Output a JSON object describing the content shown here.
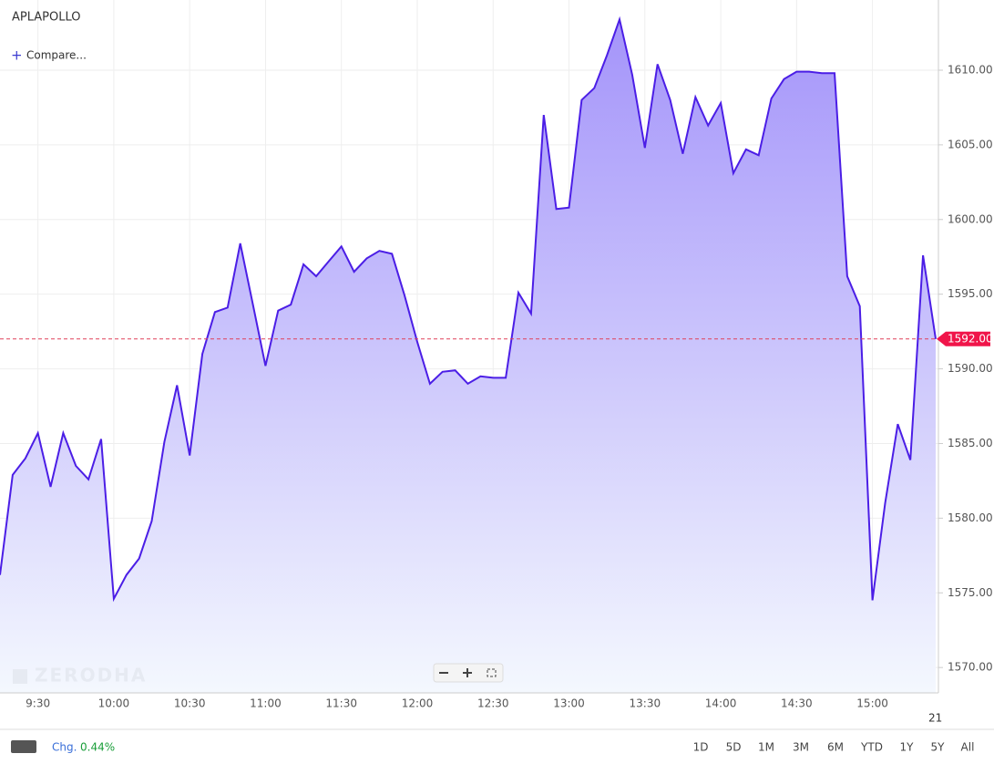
{
  "chart_data": {
    "type": "area",
    "title": "APLAPOLLO",
    "compare": "Compare...",
    "watermark": "ZERODHA",
    "categories": [
      null,
      null,
      null,
      "9:30",
      null,
      null,
      null,
      null,
      null,
      "10:00",
      null,
      null,
      null,
      null,
      null,
      "10:30",
      null,
      null,
      null,
      null,
      null,
      "11:00",
      null,
      null,
      null,
      null,
      null,
      "11:30",
      null,
      null,
      null,
      null,
      null,
      "12:00",
      null,
      null,
      null,
      null,
      null,
      "12:30",
      null,
      null,
      null,
      null,
      null,
      "13:00",
      null,
      null,
      null,
      null,
      null,
      "13:30",
      null,
      null,
      null,
      null,
      null,
      "14:00",
      null,
      null,
      null,
      null,
      null,
      "14:30",
      null,
      null,
      null,
      null,
      null,
      "15:00",
      null,
      null,
      null,
      null,
      null
    ],
    "values": [
      1576.2,
      1582.9,
      1584.0,
      1585.7,
      1582.1,
      1585.7,
      1583.5,
      1582.6,
      1585.3,
      1574.6,
      1576.2,
      1577.3,
      1579.8,
      1585.1,
      1588.9,
      1584.2,
      1591.0,
      1593.8,
      1594.1,
      1598.4,
      1594.3,
      1590.2,
      1593.9,
      1594.3,
      1597.0,
      1596.2,
      1597.2,
      1598.2,
      1596.5,
      1597.4,
      1597.9,
      1597.7,
      1594.9,
      1591.8,
      1589.0,
      1589.8,
      1589.9,
      1589.0,
      1589.5,
      1589.4,
      1589.4,
      1595.1,
      1593.7,
      1607.0,
      1600.7,
      1600.8,
      1608.0,
      1608.8,
      1611.0,
      1613.4,
      1609.7,
      1604.8,
      1610.4,
      1608.0,
      1604.4,
      1608.2,
      1606.3,
      1607.8,
      1603.1,
      1604.7,
      1604.3,
      1608.1,
      1609.4,
      1609.9,
      1609.9,
      1609.8,
      1609.8,
      1596.2,
      1594.2,
      1574.5,
      1581.0,
      1586.3,
      1583.9,
      1597.6,
      1592.0
    ],
    "color": "#4b1ee6",
    "ylim": [
      1568.3,
      1614.7
    ],
    "yticks": [
      {
        "value": 1570,
        "label": "1570.00"
      },
      {
        "value": 1575,
        "label": "1575.00"
      },
      {
        "value": 1580,
        "label": "1580.00"
      },
      {
        "value": 1585,
        "label": "1585.00"
      },
      {
        "value": 1590,
        "label": "1590.00"
      },
      {
        "value": 1595,
        "label": "1595.00"
      },
      {
        "value": 1600,
        "label": "1600.00"
      },
      {
        "value": 1605,
        "label": "1605.00"
      },
      {
        "value": 1610,
        "label": "1610.00"
      }
    ],
    "last_price": {
      "value": 1592,
      "label": "1592.00"
    },
    "date_label": "21",
    "grid": true
  },
  "footer": {
    "change_label": "Chg.",
    "change": "0.44%",
    "ranges": [
      "1D",
      "5D",
      "1M",
      "3M",
      "6M",
      "YTD",
      "1Y",
      "5Y",
      "All"
    ]
  }
}
